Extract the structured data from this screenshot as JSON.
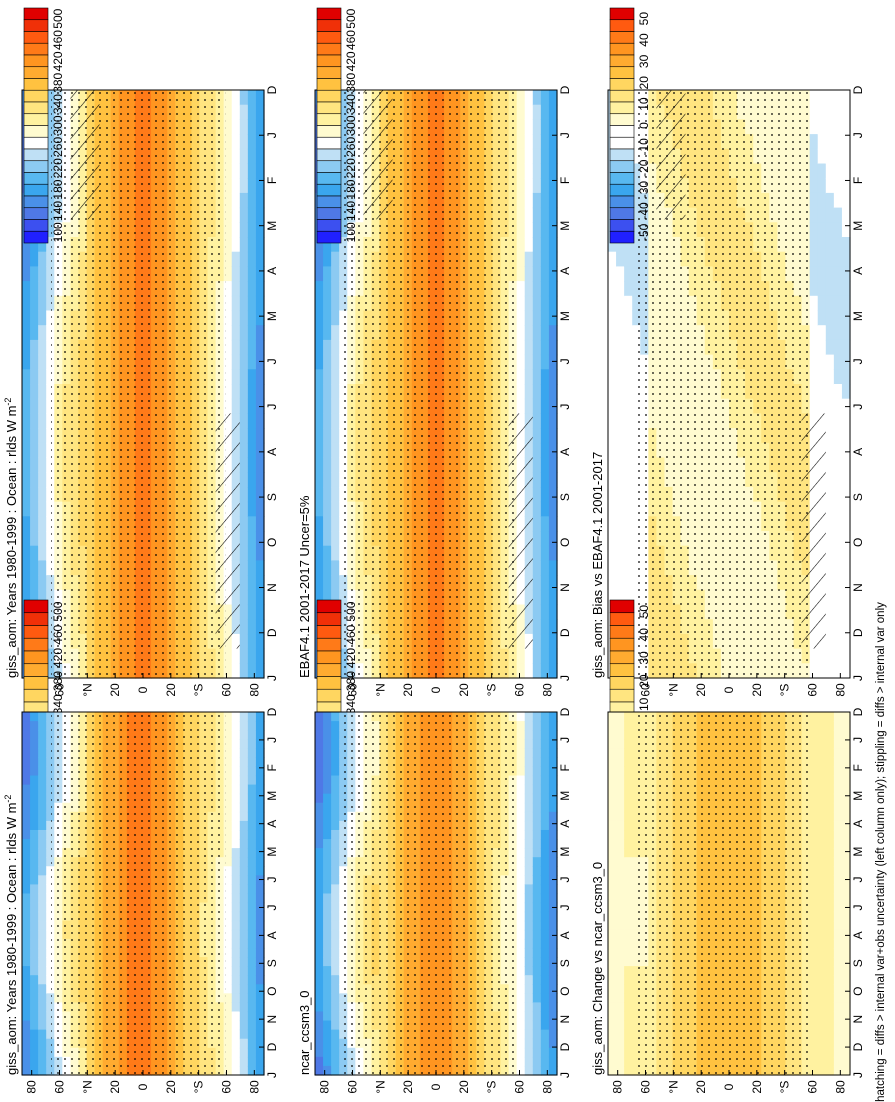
{
  "footnote": "hatching = diffs > internal var+obs uncertainty (left column only); stippling = diffs > internal var only",
  "colors": {
    "abs_scale": [
      "#2020ff",
      "#3c50f0",
      "#4f78e6",
      "#4a90e8",
      "#3aa6ee",
      "#58b8f0",
      "#8ccaf2",
      "#bfe0f5",
      "#ffffff",
      "#fffbd0",
      "#fff2a0",
      "#ffe580",
      "#ffd660",
      "#ffc240",
      "#ffab30",
      "#ff9520",
      "#ff7a18",
      "#ff5a10",
      "#f03008",
      "#e00000"
    ],
    "diff_scale": [
      "#2020ff",
      "#3c50f0",
      "#4f78e6",
      "#4a90e8",
      "#3aa6ee",
      "#58b8f0",
      "#8ccaf2",
      "#bfe0f5",
      "#ffffff",
      "#ffffff",
      "#fffbd0",
      "#fff2a0",
      "#ffe580",
      "#ffd660",
      "#ffc240",
      "#ffab30",
      "#ff9520",
      "#ff7a18",
      "#ff5a10",
      "#e00000"
    ]
  },
  "chart_data": [
    {
      "type": "heatmap",
      "title": "giss_aom: Years 1980-1999 : Ocean : rlds W m",
      "title_sup": "-2",
      "x_tick_labels": [
        "D",
        "J",
        "F",
        "M",
        "A",
        "M",
        "J",
        "J",
        "A",
        "S",
        "O",
        "N",
        "D",
        "J"
      ],
      "y_tick_labels": [
        "80",
        "60",
        "°N",
        "20",
        "0",
        "20",
        "°S",
        "60",
        "80"
      ],
      "colorbar_labels": [
        "500",
        "460",
        "420",
        "380",
        "340",
        "300",
        "260",
        "220",
        "180",
        "140",
        "100"
      ],
      "hatching": true,
      "stippling": true
    },
    {
      "type": "heatmap",
      "title": "giss_aom: Years 1980-1999 : Ocean : rlds W m",
      "title_sup": "-2",
      "x_tick_labels": [
        "D",
        "J",
        "F",
        "M",
        "A",
        "M",
        "J",
        "J",
        "A",
        "S",
        "O",
        "N",
        "D",
        "J"
      ],
      "y_tick_labels": [
        "80",
        "60",
        "°N",
        "20",
        "0",
        "20",
        "°S",
        "60",
        "80"
      ],
      "colorbar_labels": [
        "500",
        "460",
        "420",
        "380",
        "340",
        "300",
        "260",
        "220",
        "180",
        "140",
        "100"
      ],
      "hatching": false,
      "stippling": true
    },
    {
      "type": "heatmap",
      "title": "EBAF4.1 2001-2017 Uncer=5%",
      "title_sup": "",
      "x_tick_labels": [
        "D",
        "J",
        "F",
        "M",
        "A",
        "M",
        "J",
        "J",
        "A",
        "S",
        "O",
        "N",
        "D",
        "J"
      ],
      "y_tick_labels": [
        "80",
        "60",
        "°N",
        "20",
        "0",
        "20",
        "°S",
        "60",
        "80"
      ],
      "colorbar_labels": [
        "500",
        "460",
        "420",
        "380",
        "340",
        "300",
        "260",
        "220",
        "180",
        "140",
        "100"
      ],
      "hatching": true,
      "stippling": true
    },
    {
      "type": "heatmap",
      "title": "ncar_ccsm3_0",
      "title_sup": "",
      "x_tick_labels": [
        "D",
        "J",
        "F",
        "M",
        "A",
        "M",
        "J",
        "J",
        "A",
        "S",
        "O",
        "N",
        "D",
        "J"
      ],
      "y_tick_labels": [
        "80",
        "60",
        "°N",
        "20",
        "0",
        "20",
        "°S",
        "60",
        "80"
      ],
      "colorbar_labels": [
        "500",
        "460",
        "420",
        "380",
        "340",
        "300",
        "260",
        "220",
        "180",
        "140",
        "100"
      ],
      "hatching": false,
      "stippling": true
    },
    {
      "type": "heatmap",
      "title": "giss_aom: Bias vs EBAF4.1 2001-2017",
      "title_sup": "",
      "x_tick_labels": [
        "D",
        "J",
        "F",
        "M",
        "A",
        "M",
        "J",
        "J",
        "A",
        "S",
        "O",
        "N",
        "D",
        "J"
      ],
      "y_tick_labels": [
        "80",
        "60",
        "°N",
        "20",
        "0",
        "20",
        "°S",
        "60",
        "80"
      ],
      "colorbar_labels": [
        "50",
        "40",
        "30",
        "20",
        "10",
        "0",
        "-10",
        "-20",
        "-30",
        "-40",
        "-50"
      ],
      "hatching": true,
      "stippling": true
    },
    {
      "type": "heatmap",
      "title": "giss_aom: Change vs ncar_ccsm3_0",
      "title_sup": "",
      "x_tick_labels": [
        "D",
        "J",
        "F",
        "M",
        "A",
        "M",
        "J",
        "J",
        "A",
        "S",
        "O",
        "N",
        "D",
        "J"
      ],
      "y_tick_labels": [
        "80",
        "60",
        "°N",
        "20",
        "0",
        "20",
        "°S",
        "60",
        "80"
      ],
      "colorbar_labels": [
        "50",
        "40",
        "30",
        "20",
        "10",
        "0",
        "-10",
        "-20",
        "-30",
        "-40",
        "-50"
      ],
      "hatching": false,
      "stippling": true
    }
  ]
}
